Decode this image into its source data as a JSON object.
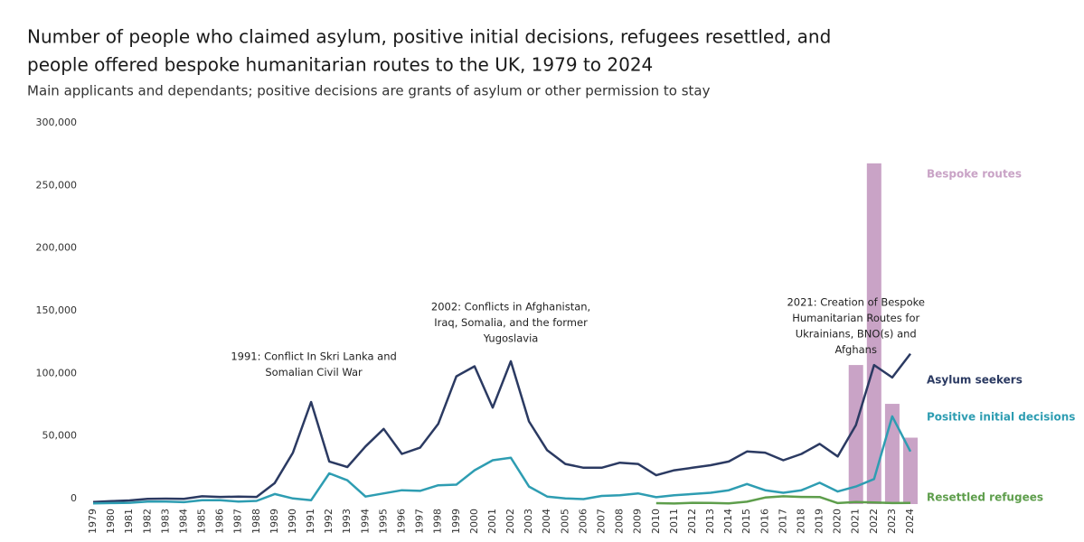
{
  "chart_data": {
    "type": "line",
    "title": [
      "Number of people who claimed asylum, positive initial decisions, refugees resettled, and",
      "people offered bespoke humanitarian routes to the UK, 1979 to 2024"
    ],
    "subtitle": "Main applicants and dependants; positive decisions are grants of asylum or other permission to stay",
    "x": [
      1979,
      1980,
      1981,
      1982,
      1983,
      1984,
      1985,
      1986,
      1987,
      1988,
      1989,
      1990,
      1991,
      1992,
      1993,
      1994,
      1995,
      1996,
      1997,
      1998,
      1999,
      2000,
      2001,
      2002,
      2003,
      2004,
      2005,
      2006,
      2007,
      2008,
      2009,
      2010,
      2011,
      2012,
      2013,
      2014,
      2015,
      2016,
      2017,
      2018,
      2019,
      2020,
      2021,
      2022,
      2023,
      2024
    ],
    "xlim": [
      1979,
      2024
    ],
    "ylim": [
      0,
      300000
    ],
    "yticks": [
      0,
      {
        "value": 50000,
        "label": "50,000"
      },
      {
        "value": 100000,
        "label": "100,000"
      },
      {
        "value": 150000,
        "label": "150,000"
      },
      {
        "value": 200000,
        "label": "200,000"
      },
      {
        "value": 250000,
        "label": "250,000"
      },
      {
        "value": 300000,
        "label": "300,000"
      }
    ],
    "series": [
      {
        "name": "Bespoke routes",
        "type": "bar",
        "color": "#c9a3c6",
        "values": [
          null,
          null,
          null,
          null,
          null,
          null,
          null,
          null,
          null,
          null,
          null,
          null,
          null,
          null,
          null,
          null,
          null,
          null,
          null,
          null,
          null,
          null,
          null,
          null,
          null,
          null,
          null,
          null,
          null,
          null,
          null,
          null,
          null,
          null,
          null,
          null,
          null,
          null,
          null,
          null,
          null,
          null,
          111000,
          272000,
          80000,
          53000
        ]
      },
      {
        "name": "Asylum seekers",
        "type": "line",
        "color": "#2b3a62",
        "values": [
          1600,
          2300,
          2900,
          4200,
          4300,
          4200,
          6200,
          5700,
          5900,
          5700,
          16800,
          41000,
          81500,
          34000,
          29600,
          46000,
          60000,
          40000,
          45000,
          64000,
          102000,
          110000,
          77000,
          114000,
          66000,
          43000,
          32000,
          29000,
          29000,
          33000,
          32000,
          23000,
          27000,
          29000,
          31000,
          34000,
          42000,
          41000,
          35000,
          40000,
          48000,
          38000,
          63000,
          111000,
          101000,
          120000
        ]
      },
      {
        "name": "Positive initial decisions",
        "type": "line",
        "color": "#2e9db2",
        "values": [
          500,
          800,
          1000,
          2000,
          2000,
          1500,
          3000,
          3000,
          2000,
          2500,
          8000,
          4500,
          3000,
          24500,
          19000,
          6000,
          8500,
          11000,
          10500,
          15000,
          15500,
          27000,
          35000,
          37000,
          14000,
          6000,
          4500,
          4000,
          6500,
          7000,
          8500,
          5500,
          7000,
          8000,
          9000,
          11000,
          16000,
          11000,
          9000,
          11000,
          17000,
          10000,
          14000,
          20000,
          70000,
          42000
        ]
      },
      {
        "name": "Resettled refugees",
        "type": "line",
        "color": "#5e9e4c",
        "values": [
          null,
          null,
          null,
          null,
          null,
          null,
          null,
          null,
          null,
          null,
          null,
          null,
          null,
          null,
          null,
          null,
          null,
          null,
          null,
          null,
          null,
          null,
          null,
          null,
          null,
          null,
          null,
          null,
          null,
          null,
          null,
          700,
          450,
          1000,
          900,
          600,
          1900,
          5200,
          6200,
          5700,
          5600,
          800,
          1600,
          1200,
          800,
          900
        ]
      }
    ],
    "annotations": [
      {
        "x": 1991,
        "lines": [
          "1991: Conflict In Skri Lanka and",
          "Somalian Civil War"
        ]
      },
      {
        "x": 2002,
        "lines": [
          "2002: Conflicts in Afghanistan,",
          "Iraq, Somalia, and the former",
          "Yugoslavia"
        ]
      },
      {
        "x": 2021,
        "lines": [
          "2021: Creation of Bespoke",
          "Humanitarian Routes for",
          "Ukrainians, BNO(s) and",
          "Afghans"
        ]
      }
    ]
  }
}
